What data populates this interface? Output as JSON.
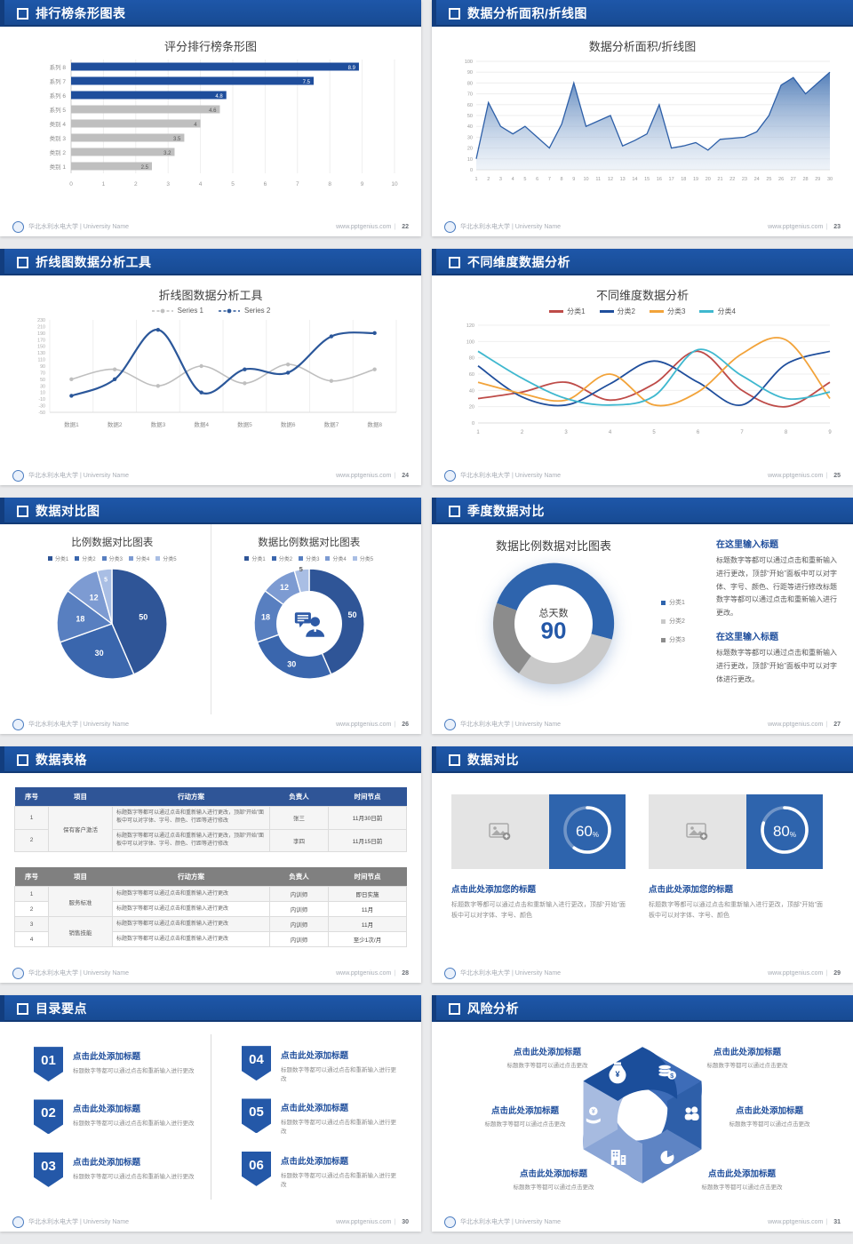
{
  "footer": {
    "org": "华北水利水电大学 | University Name",
    "site": "www.pptgenius.com"
  },
  "slides": {
    "s22": {
      "header": "排行榜条形图表",
      "page": "22",
      "chart": {
        "type": "bar",
        "title": "评分排行榜条形图",
        "categories": [
          "系列 8",
          "系列 7",
          "系列 6",
          "系列 5",
          "类别 4",
          "类别 3",
          "类别 2",
          "类别 1"
        ],
        "values": [
          8.9,
          7.5,
          4.8,
          4.6,
          4,
          3.5,
          3.2,
          2.5
        ],
        "colors": [
          "#1F4E9C",
          "#1F4E9C",
          "#1F4E9C",
          "#BFBFBF",
          "#BFBFBF",
          "#BFBFBF",
          "#BFBFBF",
          "#BFBFBF"
        ],
        "xlim": [
          0,
          10
        ],
        "xticks": [
          0,
          1,
          2,
          3,
          4,
          5,
          6,
          7,
          8,
          9,
          10
        ]
      }
    },
    "s23": {
      "header": "数据分析面积/折线图",
      "page": "23",
      "chart": {
        "type": "area",
        "title": "数据分析面积/折线图",
        "x": [
          1,
          2,
          3,
          4,
          5,
          6,
          7,
          8,
          9,
          10,
          11,
          12,
          13,
          14,
          15,
          16,
          17,
          18,
          19,
          20,
          21,
          22,
          23,
          24,
          25,
          26,
          27,
          28,
          29,
          30
        ],
        "values": [
          10,
          62,
          40,
          33,
          40,
          30,
          20,
          42,
          80,
          40,
          45,
          50,
          22,
          27,
          33,
          60,
          20,
          22,
          25,
          18,
          28,
          29,
          30,
          35,
          50,
          78,
          85,
          70,
          80,
          90
        ],
        "ylim": [
          0,
          100
        ],
        "ytick_step": 10
      }
    },
    "s24": {
      "header": "折线图数据分析工具",
      "page": "24",
      "chart": {
        "type": "line",
        "title": "折线图数据分析工具",
        "categories": [
          "数据1",
          "数据2",
          "数据3",
          "数据4",
          "数据5",
          "数据6",
          "数据7",
          "数据8"
        ],
        "series": [
          {
            "name": "Series 1",
            "color": "#BFBFBF",
            "values": [
              50,
              80,
              30,
              90,
              38,
              95,
              45,
              80
            ]
          },
          {
            "name": "Series 2",
            "color": "#2B579A",
            "values": [
              0,
              50,
              200,
              10,
              80,
              70,
              180,
              190
            ]
          }
        ],
        "ylim": [
          -50,
          230
        ],
        "ytick_step": 20
      }
    },
    "s25": {
      "header": "不同维度数据分析",
      "page": "25",
      "chart": {
        "type": "line",
        "title": "不同维度数据分析",
        "x": [
          1,
          2,
          3,
          4,
          5,
          6,
          7,
          8,
          9
        ],
        "series": [
          {
            "name": "分类1",
            "color": "#BE4B48",
            "values": [
              30,
              38,
              50,
              28,
              48,
              88,
              40,
              20,
              50
            ]
          },
          {
            "name": "分类2",
            "color": "#1F4E9C",
            "values": [
              70,
              32,
              22,
              48,
              76,
              50,
              22,
              72,
              88
            ]
          },
          {
            "name": "分类3",
            "color": "#F2A33A",
            "values": [
              50,
              36,
              28,
              60,
              22,
              38,
              85,
              102,
              30
            ]
          },
          {
            "name": "分类4",
            "color": "#3FB8CF",
            "values": [
              88,
              55,
              30,
              22,
              33,
              90,
              58,
              30,
              38
            ]
          }
        ],
        "ylim": [
          0,
          120
        ],
        "ytick_step": 20
      }
    },
    "s26": {
      "header": "数据对比图",
      "page": "26",
      "left_title": "比例数据对比图表",
      "right_title": "数据比例数据对比图表",
      "legend": [
        "分类1",
        "分类2",
        "分类3",
        "分类4",
        "分类5"
      ],
      "values": [
        50,
        30,
        18,
        12,
        5
      ],
      "colors": [
        "#2F5597",
        "#3A66AD",
        "#587FC0",
        "#7D9BD2",
        "#A9BEE4"
      ]
    },
    "s27": {
      "header": "季度数据对比",
      "page": "27",
      "title": "数据比例数据对比图表",
      "center_label": "总天数",
      "center_value": "90",
      "segments": [
        {
          "deg": 175,
          "color": "#2E64AD"
        },
        {
          "deg": 110,
          "color": "#C9C9C9"
        },
        {
          "deg": 75,
          "color": "#8C8C8C"
        }
      ],
      "start_angle": -70,
      "legend": [
        {
          "label": "分类1",
          "color": "#2E64AD"
        },
        {
          "label": "分类2",
          "color": "#C9C9C9"
        },
        {
          "label": "分类3",
          "color": "#8C8C8C"
        }
      ],
      "blocks": [
        {
          "heading": "在这里输入标题",
          "body": "标题数字等都可以通过点击和重新输入进行更改，顶部“开始”面板中可以对字体、字号、颜色、行距等进行修改标题数字等都可以通过点击和重新输入进行更改。"
        },
        {
          "heading": "在这里输入标题",
          "body": "标题数字等都可以通过点击和重新输入进行更改，顶部“开始”面板中可以对字体进行更改。"
        }
      ]
    },
    "s28": {
      "header": "数据表格",
      "page": "28",
      "headers": [
        "序号",
        "项目",
        "行动方案",
        "负责人",
        "时间节点"
      ],
      "table1": {
        "item_merged": "保有客户激活",
        "plan": "标题数字等都可以通过点击和重新输入进行更改，顶部“开始”面板中可以对字体、字号、颜色、行距等进行修改",
        "rows": [
          {
            "no": "1",
            "owner": "张三",
            "time": "11月30日前"
          },
          {
            "no": "2",
            "owner": "李四",
            "time": "11月15日前"
          }
        ]
      },
      "table2": {
        "item_merged_a": "服务标准",
        "item_merged_b": "销售技能",
        "plan": "标题数字等都可以通过点击和重新输入进行更改",
        "rows": [
          {
            "no": "1",
            "owner": "内训师",
            "time": "即日实施"
          },
          {
            "no": "2",
            "owner": "内训师",
            "time": "11月"
          },
          {
            "no": "3",
            "owner": "内训师",
            "time": "11月"
          },
          {
            "no": "4",
            "owner": "内训师",
            "time": "至少1次/月"
          }
        ]
      }
    },
    "s29": {
      "header": "数据对比",
      "page": "29",
      "cards": [
        {
          "percent": 60,
          "percent_label": "60",
          "sign": "%",
          "heading": "点击此处添加您的标题",
          "body": "标题数字等都可以通过点击和重新输入进行更改，顶部“开始”面板中可以对字体、字号、颜色"
        },
        {
          "percent": 80,
          "percent_label": "80",
          "sign": "%",
          "heading": "点击此处添加您的标题",
          "body": "标题数字等都可以通过点击和重新输入进行更改，顶部“开始”面板中可以对字体、字号、颜色"
        }
      ]
    },
    "s30": {
      "header": "目录要点",
      "page": "30",
      "items": [
        {
          "num": "01",
          "title": "点击此处添加标题",
          "desc": "标题数字等都可以通过点击和重新输入进行更改"
        },
        {
          "num": "02",
          "title": "点击此处添加标题",
          "desc": "标题数字等都可以通过点击和重新输入进行更改"
        },
        {
          "num": "03",
          "title": "点击此处添加标题",
          "desc": "标题数字等都可以通过点击和重新输入进行更改"
        },
        {
          "num": "04",
          "title": "点击此处添加标题",
          "desc": "标题数字等都可以通过点击和重新输入进行更改"
        },
        {
          "num": "05",
          "title": "点击此处添加标题",
          "desc": "标题数字等都可以通过点击和重新输入进行更改"
        },
        {
          "num": "06",
          "title": "点击此处添加标题",
          "desc": "标题数字等都可以通过点击和重新输入进行更改"
        }
      ]
    },
    "s31": {
      "header": "风险分析",
      "page": "31",
      "labels": [
        {
          "title": "点击此处添加标题",
          "desc": "标题数字等都可以通过点击更改"
        },
        {
          "title": "点击此处添加标题",
          "desc": "标题数字等都可以通过点击更改"
        },
        {
          "title": "点击此处添加标题",
          "desc": "标题数字等都可以通过点击更改"
        },
        {
          "title": "点击此处添加标题",
          "desc": "标题数字等都可以通过点击更改"
        },
        {
          "title": "点击此处添加标题",
          "desc": "标题数字等都可以通过点击更改"
        },
        {
          "title": "点击此处添加标题",
          "desc": "标题数字等都可以通过点击更改"
        }
      ],
      "blades": [
        {
          "rot": 0,
          "color": "#3D6CB8",
          "icon": "coins"
        },
        {
          "rot": 60,
          "color": "#2E5FA9",
          "icon": "people"
        },
        {
          "rot": 120,
          "color": "#5E84C4",
          "icon": "pie"
        },
        {
          "rot": 180,
          "color": "#8AA5D6",
          "icon": "building"
        },
        {
          "rot": 240,
          "color": "#A7BBE0",
          "icon": "hand"
        },
        {
          "rot": 300,
          "color": "#1B4E9B",
          "icon": "moneybag"
        }
      ]
    }
  },
  "chart_data": [
    {
      "type": "bar",
      "title": "评分排行榜条形图",
      "categories": [
        "系列 8",
        "系列 7",
        "系列 6",
        "系列 5",
        "类别 4",
        "类别 3",
        "类别 2",
        "类别 1"
      ],
      "values": [
        8.9,
        7.5,
        4.8,
        4.6,
        4,
        3.5,
        3.2,
        2.5
      ],
      "xlim": [
        0,
        10
      ]
    },
    {
      "type": "area",
      "title": "数据分析面积/折线图",
      "x": [
        1,
        30
      ],
      "values": [
        10,
        62,
        40,
        33,
        40,
        30,
        20,
        42,
        80,
        40,
        45,
        50,
        22,
        27,
        33,
        60,
        20,
        22,
        25,
        18,
        28,
        29,
        30,
        35,
        50,
        78,
        85,
        70,
        80,
        90
      ],
      "ylim": [
        0,
        100
      ]
    },
    {
      "type": "line",
      "title": "折线图数据分析工具",
      "categories": [
        "数据1",
        "数据2",
        "数据3",
        "数据4",
        "数据5",
        "数据6",
        "数据7",
        "数据8"
      ],
      "series": [
        {
          "name": "Series 1",
          "values": [
            50,
            80,
            30,
            90,
            38,
            95,
            45,
            80
          ]
        },
        {
          "name": "Series 2",
          "values": [
            0,
            50,
            200,
            10,
            80,
            70,
            180,
            190
          ]
        }
      ],
      "ylim": [
        -50,
        230
      ]
    },
    {
      "type": "line",
      "title": "不同维度数据分析",
      "x": [
        1,
        2,
        3,
        4,
        5,
        6,
        7,
        8,
        9
      ],
      "series": [
        {
          "name": "分类1",
          "values": [
            30,
            38,
            50,
            28,
            48,
            88,
            40,
            20,
            50
          ]
        },
        {
          "name": "分类2",
          "values": [
            70,
            32,
            22,
            48,
            76,
            50,
            22,
            72,
            88
          ]
        },
        {
          "name": "分类3",
          "values": [
            50,
            36,
            28,
            60,
            22,
            38,
            85,
            102,
            30
          ]
        },
        {
          "name": "分类4",
          "values": [
            88,
            55,
            30,
            22,
            33,
            90,
            58,
            30,
            38
          ]
        }
      ],
      "ylim": [
        0,
        120
      ]
    },
    {
      "type": "pie",
      "title": "比例数据对比图表",
      "categories": [
        "分类1",
        "分类2",
        "分类3",
        "分类4",
        "分类5"
      ],
      "values": [
        50,
        30,
        18,
        12,
        5
      ]
    },
    {
      "type": "pie",
      "title": "数据比例数据对比图表",
      "categories": [
        "分类1",
        "分类2",
        "分类3",
        "分类4",
        "分类5"
      ],
      "values": [
        50,
        30,
        18,
        12,
        5
      ]
    },
    {
      "type": "pie",
      "title": "数据比例数据对比图表 (总天数 90)",
      "categories": [
        "分类1",
        "分类2",
        "分类3"
      ],
      "values": [
        48.6,
        30.6,
        20.8
      ]
    },
    {
      "type": "pie",
      "title": "数据对比 60%",
      "values": [
        60,
        40
      ]
    },
    {
      "type": "pie",
      "title": "数据对比 80%",
      "values": [
        80,
        20
      ]
    }
  ]
}
